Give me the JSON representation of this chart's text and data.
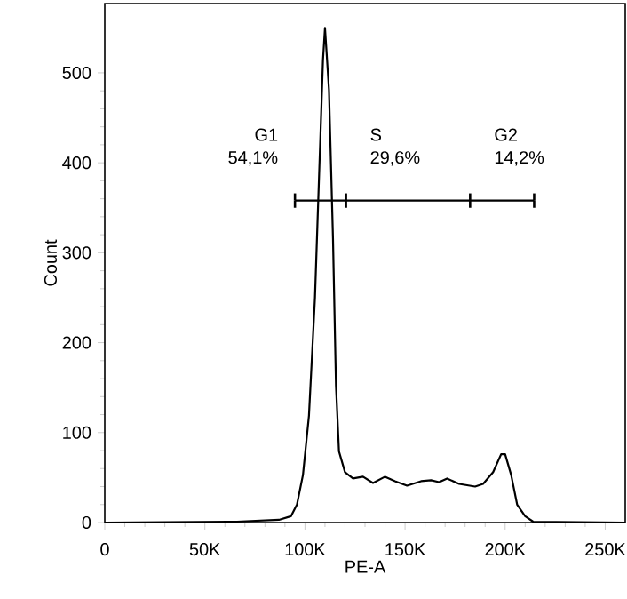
{
  "chart_data": {
    "type": "line",
    "xlabel": "PE-A",
    "ylabel": "Count",
    "xlim": [
      0,
      260000
    ],
    "ylim": [
      0,
      577
    ],
    "xticks": [
      {
        "value": 0,
        "label": "0"
      },
      {
        "value": 50000,
        "label": "50K"
      },
      {
        "value": 100000,
        "label": "100K"
      },
      {
        "value": 150000,
        "label": "150K"
      },
      {
        "value": 200000,
        "label": "200K"
      },
      {
        "value": 250000,
        "label": "250K"
      }
    ],
    "yticks": [
      0,
      100,
      200,
      300,
      400,
      500
    ],
    "grid": false,
    "series": [
      {
        "color": "#000000",
        "x": [
          0,
          66000,
          87000,
          93000,
          96000,
          99000,
          102000,
          105000,
          107000,
          109000,
          110000,
          112000,
          114000,
          115500,
          117000,
          120000,
          124000,
          129000,
          134000,
          140000,
          145000,
          151000,
          158000,
          163000,
          167000,
          171000,
          177000,
          185000,
          189000,
          194000,
          198000,
          200000,
          203000,
          206000,
          210000,
          214000,
          260000
        ],
        "values": [
          0,
          1,
          3,
          7,
          20,
          53,
          119,
          250,
          382,
          514,
          550,
          481,
          316,
          152,
          79,
          56,
          49,
          51,
          44,
          51,
          46,
          41,
          46,
          47,
          45,
          49,
          43,
          40,
          43,
          56,
          76,
          76,
          53,
          20,
          7,
          1,
          0
        ]
      },
      {
        "color": "#000000",
        "x": [
          95000,
          120500,
          182500,
          214500
        ],
        "values": [
          358,
          358,
          358,
          358
        ],
        "errors": [
          8,
          8,
          8,
          8
        ]
      }
    ],
    "annotations": [
      "G1",
      "54,1%",
      "S",
      "29,6%",
      "G2",
      "14,2%"
    ]
  }
}
